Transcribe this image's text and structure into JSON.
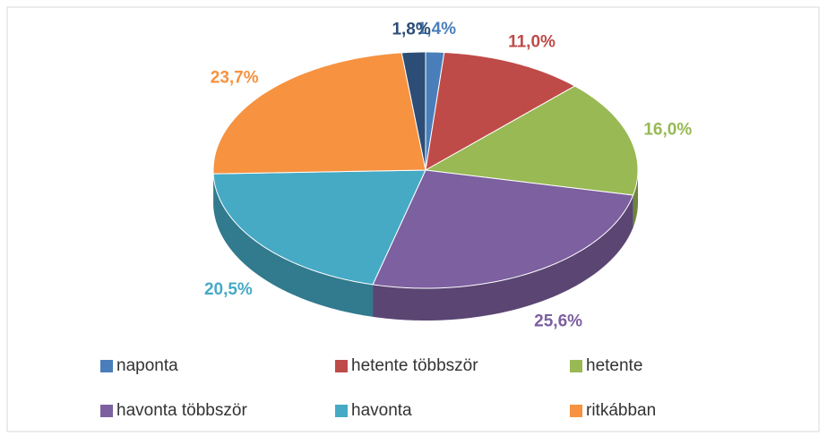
{
  "chart_data": {
    "type": "pie",
    "categories": [
      "naponta",
      "hetente többször",
      "hetente",
      "havonta többször",
      "havonta",
      "ritkábban",
      null
    ],
    "values": [
      1.4,
      11.0,
      16.0,
      25.6,
      20.5,
      23.7,
      1.8
    ],
    "value_labels": [
      "1,4%",
      "11,0%",
      "16,0%",
      "25,6%",
      "20,5%",
      "23,7%",
      "1,8%"
    ],
    "colors": [
      "#4a7ebb",
      "#be4b48",
      "#98b954",
      "#7d60a0",
      "#46aac5",
      "#f69240",
      "#2c4d75"
    ],
    "legend": "bottom"
  }
}
